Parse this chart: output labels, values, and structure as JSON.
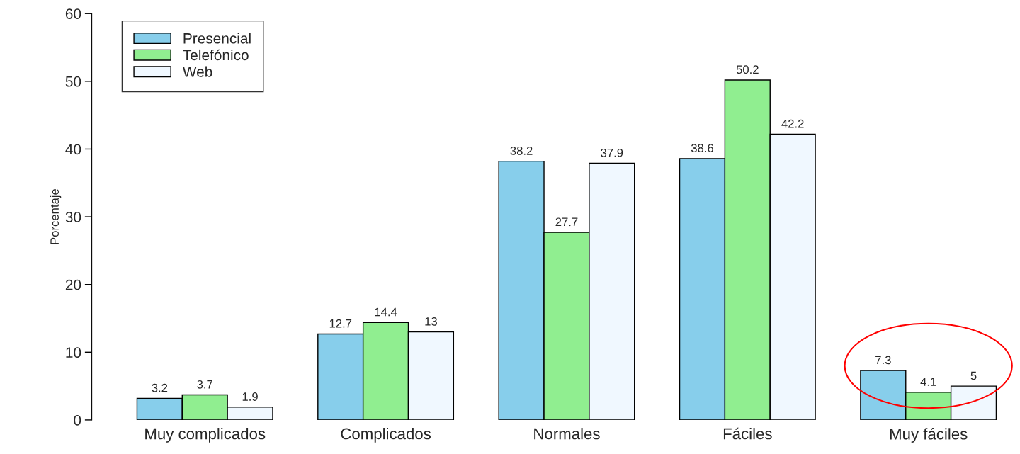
{
  "chart_data": {
    "type": "bar",
    "ylabel": "Porcentaje",
    "categories": [
      "Muy complicados",
      "Complicados",
      "Normales",
      "Fáciles",
      "Muy fáciles"
    ],
    "series": [
      {
        "name": "Presencial",
        "color": "#87ceeb",
        "values": [
          3.2,
          12.7,
          38.2,
          38.6,
          7.3
        ]
      },
      {
        "name": "Telefónico",
        "color": "#90ee90",
        "values": [
          3.7,
          14.4,
          27.7,
          50.2,
          4.1
        ]
      },
      {
        "name": "Web",
        "color": "#f0f8ff",
        "values": [
          1.9,
          13,
          37.9,
          42.2,
          5
        ]
      }
    ],
    "ylim": [
      0,
      60
    ],
    "yticks": [
      0,
      10,
      20,
      30,
      40,
      50,
      60
    ],
    "data_labels": true,
    "legend": "top left",
    "grid": false
  }
}
